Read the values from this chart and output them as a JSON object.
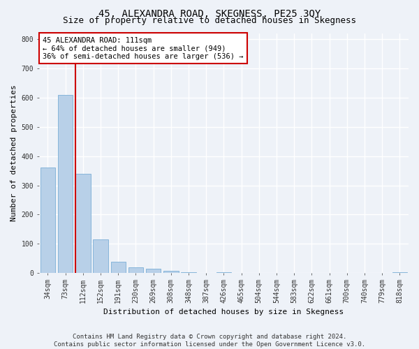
{
  "title": "45, ALEXANDRA ROAD, SKEGNESS, PE25 3QY",
  "subtitle": "Size of property relative to detached houses in Skegness",
  "xlabel": "Distribution of detached houses by size in Skegness",
  "ylabel": "Number of detached properties",
  "categories": [
    "34sqm",
    "73sqm",
    "112sqm",
    "152sqm",
    "191sqm",
    "230sqm",
    "269sqm",
    "308sqm",
    "348sqm",
    "387sqm",
    "426sqm",
    "465sqm",
    "504sqm",
    "544sqm",
    "583sqm",
    "622sqm",
    "661sqm",
    "700sqm",
    "740sqm",
    "779sqm",
    "818sqm"
  ],
  "values": [
    360,
    610,
    340,
    115,
    40,
    20,
    15,
    8,
    3,
    0,
    3,
    0,
    0,
    0,
    0,
    0,
    0,
    0,
    0,
    0,
    3
  ],
  "bar_color": "#b8d0e8",
  "bar_edge_color": "#7aaed6",
  "marker_line_color": "#cc0000",
  "annotation_text": "45 ALEXANDRA ROAD: 111sqm\n← 64% of detached houses are smaller (949)\n36% of semi-detached houses are larger (536) →",
  "annotation_box_color": "#ffffff",
  "annotation_box_edge": "#cc0000",
  "ylim": [
    0,
    820
  ],
  "yticks": [
    0,
    100,
    200,
    300,
    400,
    500,
    600,
    700,
    800
  ],
  "footer": "Contains HM Land Registry data © Crown copyright and database right 2024.\nContains public sector information licensed under the Open Government Licence v3.0.",
  "background_color": "#eef2f8",
  "plot_bg_color": "#eef2f8",
  "grid_color": "#ffffff",
  "title_fontsize": 10,
  "subtitle_fontsize": 9,
  "axis_label_fontsize": 8,
  "tick_fontsize": 7,
  "annotation_fontsize": 7.5,
  "footer_fontsize": 6.5
}
